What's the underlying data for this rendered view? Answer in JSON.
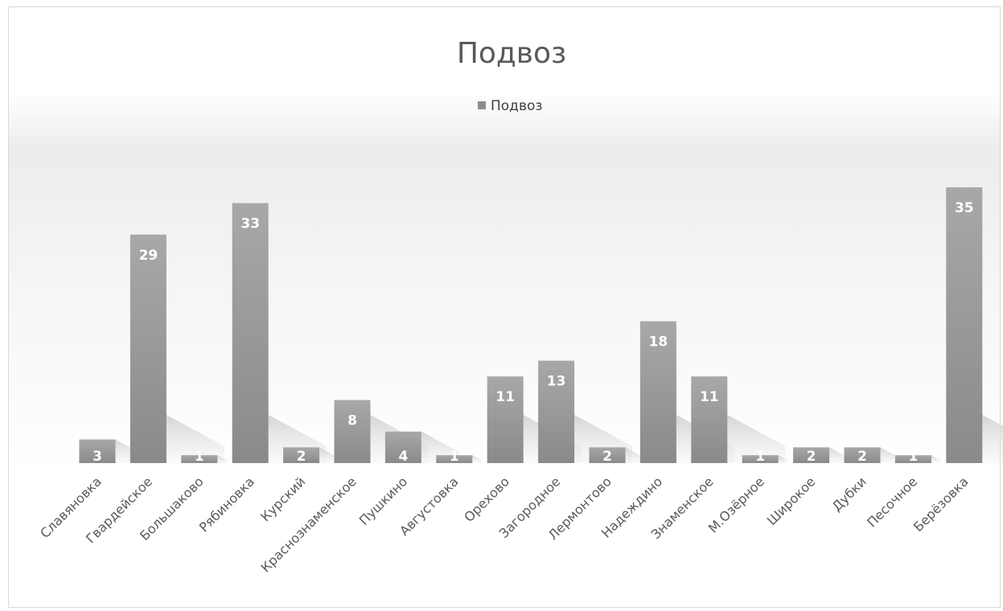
{
  "chart_data": {
    "type": "bar",
    "title": "Подвоз",
    "xlabel": "",
    "ylabel": "",
    "ylim": [
      0,
      35
    ],
    "grid": false,
    "legend": "top-center",
    "categories": [
      "Славяновка",
      "Гвардейское",
      "Большаково",
      "Рябиновка",
      "Курский",
      "Краснознаменское",
      "Пушкино",
      "Августовка",
      "Орехово",
      "Загородное",
      "Лермонтово",
      "Надеждино",
      "Знаменское",
      "М.Озёрное",
      "Широкое",
      "Дубки",
      "Песочное",
      "Берёзовка"
    ],
    "series": [
      {
        "name": "Подвоз",
        "values": [
          3,
          29,
          1,
          33,
          2,
          8,
          4,
          1,
          11,
          13,
          2,
          18,
          11,
          1,
          2,
          2,
          1,
          35
        ]
      }
    ],
    "colors": {
      "bar": "#a6a6a6",
      "bar_dark": "#7f7f7f",
      "label": "#ffffff",
      "text": "#595959"
    }
  }
}
